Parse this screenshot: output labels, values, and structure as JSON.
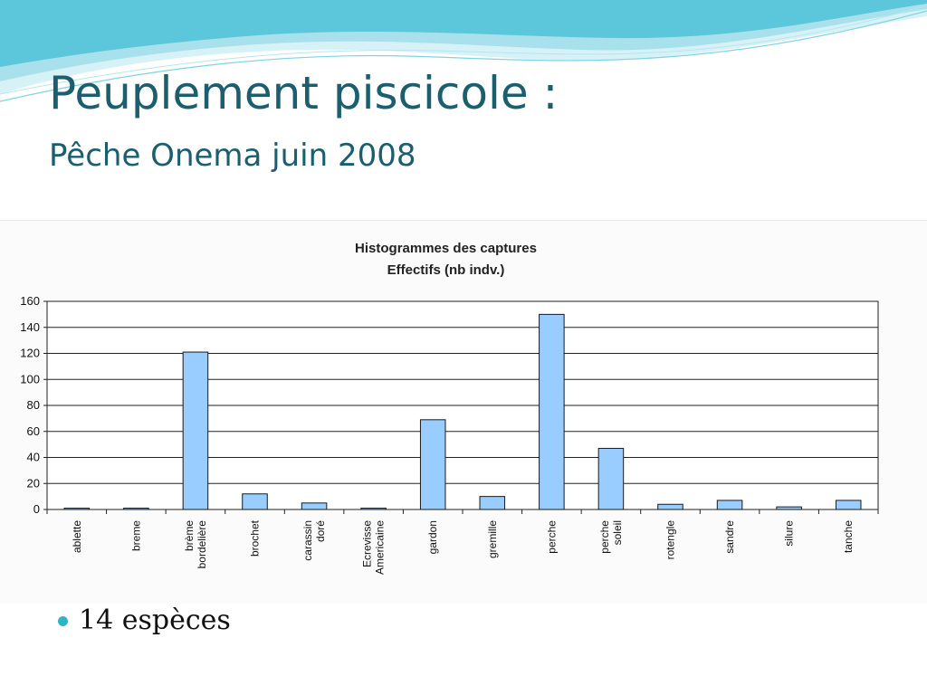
{
  "slide": {
    "title": "Peuplement piscicole :",
    "subtitle": "Pêche Onema juin 2008",
    "bullet": "14 espèces"
  },
  "colors": {
    "title": "#1b5f6e",
    "bar_fill": "#99ccff",
    "bar_stroke": "#1a1a1a",
    "bullet": "#2fb3c6",
    "wave_light": "#c9eef5",
    "wave_mid": "#7fd3e3",
    "wave_dark": "#3ab3c9"
  },
  "chart_data": {
    "type": "bar",
    "title": "Histogrammes des captures",
    "subtitle": "Effectifs (nb indv.)",
    "xlabel": "",
    "ylabel": "",
    "categories": [
      "ablette",
      "breme",
      "brème\nbordelière",
      "brochet",
      "carassin\ndoré",
      "Ecrevisse\nAmericaine",
      "gardon",
      "gremille",
      "perche",
      "perche\nsoleil",
      "rotengle",
      "sandre",
      "silure",
      "tanche"
    ],
    "values": [
      1,
      1,
      121,
      12,
      5,
      1,
      69,
      10,
      150,
      47,
      4,
      7,
      2,
      7
    ],
    "ylim": [
      0,
      160
    ],
    "yticks": [
      0,
      20,
      40,
      60,
      80,
      100,
      120,
      140,
      160
    ],
    "grid": true,
    "legend": "none"
  }
}
